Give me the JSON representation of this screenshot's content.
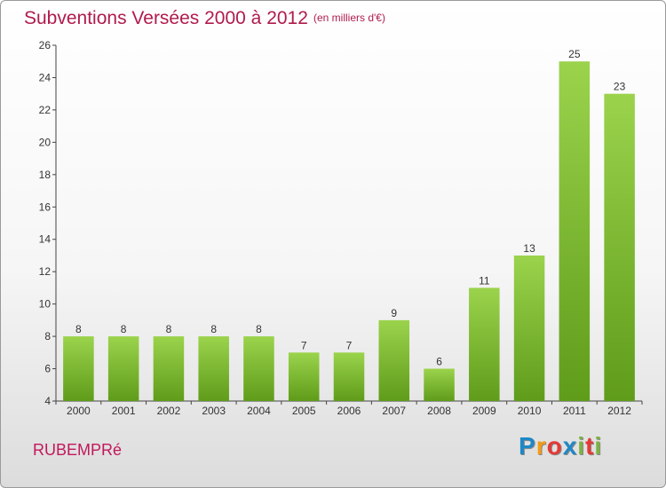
{
  "header": {
    "title": "Subventions Versées 2000 à 2012",
    "subtitle": "(en milliers d'€)"
  },
  "footer": {
    "commune": "RUBEMPRé",
    "logo": {
      "letters": [
        "P",
        "r",
        "o",
        "x",
        "i",
        "t",
        "i"
      ],
      "colors": [
        "#1e88c7",
        "#f59b12",
        "#e53935",
        "#1e88c7",
        "#7cb342",
        "#e53935",
        "#7cb342"
      ]
    }
  },
  "chart_data": {
    "type": "bar",
    "title": "Subventions Versées 2000 à 2012",
    "subtitle": "(en milliers d'€)",
    "xlabel": "",
    "ylabel": "",
    "categories": [
      "2000",
      "2001",
      "2002",
      "2003",
      "2004",
      "2005",
      "2006",
      "2007",
      "2008",
      "2009",
      "2010",
      "2011",
      "2012"
    ],
    "series": [
      {
        "values": [
          8,
          8,
          8,
          8,
          8,
          7,
          7,
          9,
          6,
          11,
          13,
          25,
          23
        ]
      }
    ],
    "ylim": [
      4,
      26
    ],
    "yticks": [
      4,
      6,
      8,
      10,
      12,
      14,
      16,
      18,
      20,
      22,
      24,
      26
    ],
    "grid": false,
    "legend": "none",
    "colors": {
      "bar_light": "#9bd34c",
      "bar_dark": "#5f9c1a",
      "axis": "#444444"
    }
  }
}
